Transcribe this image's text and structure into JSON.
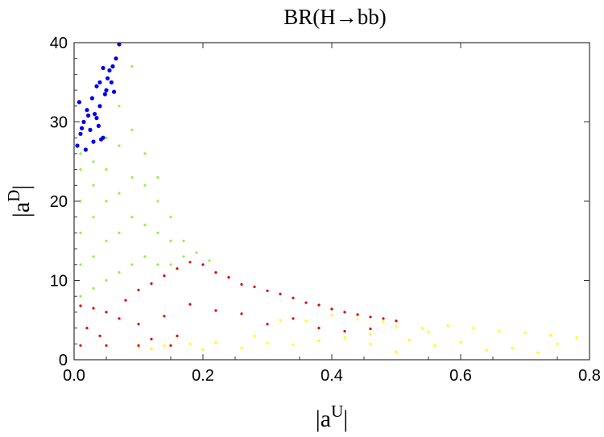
{
  "chart_data": {
    "type": "scatter",
    "title": "BR(H→bb)",
    "xlabel": "|a",
    "xlabel_sup": "U",
    "xlabel_end": "|",
    "ylabel": "|a",
    "ylabel_sup": "D",
    "ylabel_end": "|",
    "xlim": [
      0,
      0.8
    ],
    "ylim": [
      0,
      40
    ],
    "xticks": [
      0.0,
      0.2,
      0.4,
      0.6,
      0.8
    ],
    "xtick_labels": [
      "0.0",
      "0.2",
      "0.4",
      "0.6",
      "0.8"
    ],
    "yticks": [
      0,
      10,
      20,
      30,
      40
    ],
    "ytick_labels": [
      "0",
      "10",
      "20",
      "30",
      "40"
    ],
    "grid": false,
    "series": [
      {
        "color": "#ffff00",
        "points": [
          [
            0.1,
            1.6
          ],
          [
            0.14,
            1.8
          ],
          [
            0.18,
            2.0
          ],
          [
            0.22,
            2.2
          ],
          [
            0.26,
            1.5
          ],
          [
            0.3,
            2.1
          ],
          [
            0.34,
            1.9
          ],
          [
            0.38,
            2.4
          ],
          [
            0.42,
            2.8
          ],
          [
            0.46,
            3.2
          ],
          [
            0.5,
            4.2
          ],
          [
            0.54,
            4.0
          ],
          [
            0.58,
            4.3
          ],
          [
            0.62,
            4.0
          ],
          [
            0.66,
            3.6
          ],
          [
            0.7,
            3.4
          ],
          [
            0.74,
            3.1
          ],
          [
            0.78,
            2.8
          ],
          [
            0.44,
            5.1
          ],
          [
            0.48,
            4.8
          ],
          [
            0.52,
            2.5
          ],
          [
            0.56,
            1.8
          ],
          [
            0.6,
            2.2
          ],
          [
            0.64,
            1.2
          ],
          [
            0.36,
            4.9
          ],
          [
            0.4,
            5.6
          ],
          [
            0.32,
            5.0
          ],
          [
            0.28,
            3.0
          ],
          [
            0.68,
            1.5
          ],
          [
            0.72,
            0.9
          ],
          [
            0.2,
            1.3
          ],
          [
            0.12,
            1.4
          ],
          [
            0.46,
            2.0
          ],
          [
            0.55,
            3.5
          ],
          [
            0.75,
            2.0
          ],
          [
            0.5,
            1.0
          ]
        ]
      },
      {
        "color": "#dd0000",
        "points": [
          [
            0.01,
            1.8
          ],
          [
            0.05,
            1.8
          ],
          [
            0.1,
            1.8
          ],
          [
            0.15,
            1.8
          ],
          [
            0.01,
            6.8
          ],
          [
            0.03,
            6.5
          ],
          [
            0.05,
            6.0
          ],
          [
            0.07,
            5.2
          ],
          [
            0.02,
            4.0
          ],
          [
            0.04,
            3.0
          ],
          [
            0.08,
            7.5
          ],
          [
            0.1,
            8.8
          ],
          [
            0.12,
            9.6
          ],
          [
            0.14,
            10.6
          ],
          [
            0.16,
            11.5
          ],
          [
            0.18,
            12.3
          ],
          [
            0.2,
            12.0
          ],
          [
            0.22,
            11.0
          ],
          [
            0.24,
            10.4
          ],
          [
            0.26,
            9.5
          ],
          [
            0.28,
            9.2
          ],
          [
            0.3,
            8.7
          ],
          [
            0.32,
            8.3
          ],
          [
            0.34,
            7.8
          ],
          [
            0.36,
            7.2
          ],
          [
            0.38,
            6.9
          ],
          [
            0.4,
            6.4
          ],
          [
            0.42,
            6.0
          ],
          [
            0.44,
            5.7
          ],
          [
            0.46,
            5.4
          ],
          [
            0.48,
            5.2
          ],
          [
            0.5,
            4.9
          ],
          [
            0.1,
            4.5
          ],
          [
            0.14,
            5.5
          ],
          [
            0.18,
            7.0
          ],
          [
            0.22,
            6.2
          ],
          [
            0.26,
            5.8
          ],
          [
            0.3,
            4.5
          ],
          [
            0.34,
            5.2
          ],
          [
            0.38,
            4.0
          ],
          [
            0.42,
            3.6
          ],
          [
            0.46,
            3.9
          ],
          [
            0.16,
            3.0
          ],
          [
            0.12,
            2.6
          ]
        ]
      },
      {
        "color": "#99ee44",
        "points": [
          [
            0.01,
            8
          ],
          [
            0.01,
            12
          ],
          [
            0.01,
            16
          ],
          [
            0.01,
            20
          ],
          [
            0.01,
            24
          ],
          [
            0.01,
            26
          ],
          [
            0.03,
            9
          ],
          [
            0.03,
            13
          ],
          [
            0.03,
            18
          ],
          [
            0.03,
            22
          ],
          [
            0.03,
            25
          ],
          [
            0.05,
            10
          ],
          [
            0.05,
            15
          ],
          [
            0.05,
            20
          ],
          [
            0.05,
            24
          ],
          [
            0.05,
            28
          ],
          [
            0.07,
            11
          ],
          [
            0.07,
            16
          ],
          [
            0.07,
            21
          ],
          [
            0.07,
            27
          ],
          [
            0.07,
            32
          ],
          [
            0.09,
            12
          ],
          [
            0.09,
            18
          ],
          [
            0.09,
            23
          ],
          [
            0.09,
            29
          ],
          [
            0.09,
            37
          ],
          [
            0.11,
            13
          ],
          [
            0.11,
            17
          ],
          [
            0.11,
            22
          ],
          [
            0.11,
            26
          ],
          [
            0.13,
            12
          ],
          [
            0.13,
            16
          ],
          [
            0.13,
            20
          ],
          [
            0.13,
            23
          ],
          [
            0.15,
            12
          ],
          [
            0.15,
            15
          ],
          [
            0.15,
            18
          ],
          [
            0.17,
            13
          ],
          [
            0.17,
            15
          ],
          [
            0.19,
            13.5
          ],
          [
            0.21,
            12.5
          ]
        ]
      },
      {
        "color": "#0000ee",
        "points": [
          [
            0.005,
            27.0
          ],
          [
            0.01,
            28.5
          ],
          [
            0.015,
            30.0
          ],
          [
            0.02,
            31.5
          ],
          [
            0.025,
            29.0
          ],
          [
            0.03,
            27.5
          ],
          [
            0.035,
            30.5
          ],
          [
            0.04,
            32.0
          ],
          [
            0.045,
            28.0
          ],
          [
            0.008,
            32.5
          ],
          [
            0.018,
            26.5
          ],
          [
            0.028,
            33.0
          ],
          [
            0.038,
            29.5
          ],
          [
            0.012,
            29.2
          ],
          [
            0.022,
            30.8
          ],
          [
            0.032,
            31.0
          ],
          [
            0.042,
            27.8
          ],
          [
            0.05,
            34.0
          ],
          [
            0.055,
            36.5
          ],
          [
            0.06,
            37.0
          ],
          [
            0.065,
            38.0
          ],
          [
            0.07,
            39.8
          ],
          [
            0.048,
            33.5
          ],
          [
            0.052,
            35.5
          ],
          [
            0.045,
            36.8
          ],
          [
            0.04,
            35.0
          ],
          [
            0.035,
            34.5
          ],
          [
            0.058,
            35.0
          ],
          [
            0.062,
            33.8
          ]
        ]
      }
    ]
  }
}
